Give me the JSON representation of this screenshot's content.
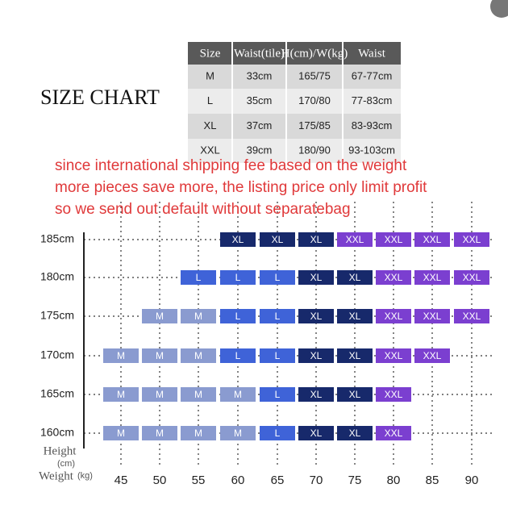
{
  "title": "SIZE CHART",
  "table": {
    "header": [
      "Size",
      "Waist(tile)",
      "H(cm)/W(kg)",
      "Waist"
    ],
    "rows": [
      [
        "M",
        "33cm",
        "165/75",
        "67-77cm"
      ],
      [
        "L",
        "35cm",
        "170/80",
        "77-83cm"
      ],
      [
        "XL",
        "37cm",
        "175/85",
        "83-93cm"
      ],
      [
        "XXL",
        "39cm",
        "180/90",
        "93-103cm"
      ]
    ]
  },
  "notice": [
    "since international shipping fee based on the weight",
    "more pieces save more, the listing price only limit profit",
    "so we send out default without separatebag"
  ],
  "grid": {
    "y_axis_label": "Height",
    "y_axis_unit": "(cm)",
    "x_axis_label": "Weight",
    "x_axis_unit": "(kg)",
    "x_labels": [
      45,
      50,
      55,
      60,
      65,
      70,
      75,
      80,
      85,
      90
    ],
    "colors": {
      "M": "#8a9bd0",
      "L": "#3f63d8",
      "XL": "#17296b",
      "XXL": "#7b3fd0"
    },
    "rows": [
      {
        "label": "185cm",
        "cells": [
          null,
          null,
          null,
          "XL",
          "XL",
          "XL",
          "XXL",
          "XXL",
          "XXL",
          "XXL"
        ]
      },
      {
        "label": "180cm",
        "cells": [
          null,
          null,
          "L",
          "L",
          "L",
          "XL",
          "XL",
          "XXL",
          "XXL",
          "XXL"
        ]
      },
      {
        "label": "175cm",
        "cells": [
          null,
          "M",
          "M",
          "L",
          "L",
          "XL",
          "XL",
          "XXL",
          "XXL",
          "XXL"
        ]
      },
      {
        "label": "170cm",
        "cells": [
          "M",
          "M",
          "M",
          "L",
          "L",
          "XL",
          "XL",
          "XXL",
          "XXL",
          null
        ]
      },
      {
        "label": "165cm",
        "cells": [
          "M",
          "M",
          "M",
          "M",
          "L",
          "XL",
          "XL",
          "XXL",
          null,
          null
        ]
      },
      {
        "label": "160cm",
        "cells": [
          "M",
          "M",
          "M",
          "M",
          "L",
          "XL",
          "XL",
          "XXL",
          null,
          null
        ]
      }
    ]
  }
}
